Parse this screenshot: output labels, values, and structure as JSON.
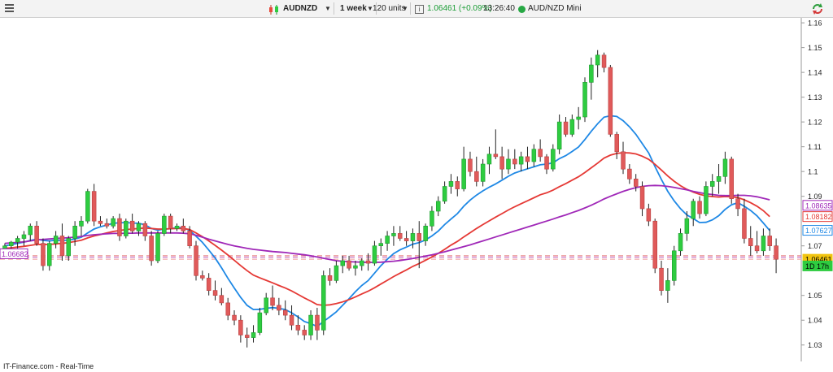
{
  "toolbar": {
    "symbol": "AUDNZD",
    "timeframe": "1 week",
    "units": "120 units",
    "price_change": "1.06461 (+0.09%)",
    "time": "13:26:40",
    "instrument_name": "AUD/NZD Mini",
    "icons": [
      "menu-icon",
      "candlestick-icon",
      "info-icon",
      "status-dot-icon",
      "refresh-icon"
    ],
    "colors": {
      "change": "#1a9c35",
      "status": "#27a844"
    }
  },
  "footer": {
    "source": "IT-Finance.com - Real-Time"
  },
  "chart_data": {
    "type": "candlestick",
    "instrument": "AUD/NZD",
    "timeframe": "1 week",
    "ylim": [
      1.025,
      1.162
    ],
    "yticks": [
      "1.16",
      "1.15",
      "1.14",
      "1.13",
      "1.12",
      "1.11",
      "1.1",
      "1.09",
      "1.07",
      "1.05",
      "1.04",
      "1.03"
    ],
    "ytick_values": [
      1.16,
      1.15,
      1.14,
      1.13,
      1.12,
      1.11,
      1.1,
      1.09,
      1.07,
      1.05,
      1.04,
      1.03
    ],
    "grid": false,
    "candles": [
      [
        1.068,
        1.071,
        1.066,
        1.07
      ],
      [
        1.07,
        1.072,
        1.069,
        1.0715
      ],
      [
        1.0715,
        1.074,
        1.069,
        1.073
      ],
      [
        1.073,
        1.076,
        1.07,
        1.0745
      ],
      [
        1.0745,
        1.079,
        1.072,
        1.078
      ],
      [
        1.078,
        1.08,
        1.07,
        1.071
      ],
      [
        1.071,
        1.073,
        1.06,
        1.062
      ],
      [
        1.062,
        1.072,
        1.06,
        1.071
      ],
      [
        1.071,
        1.076,
        1.069,
        1.074
      ],
      [
        1.074,
        1.079,
        1.064,
        1.066
      ],
      [
        1.066,
        1.074,
        1.064,
        1.073
      ],
      [
        1.073,
        1.08,
        1.07,
        1.078
      ],
      [
        1.078,
        1.082,
        1.074,
        1.08
      ],
      [
        1.08,
        1.093,
        1.079,
        1.092
      ],
      [
        1.092,
        1.095,
        1.078,
        1.08
      ],
      [
        1.08,
        1.082,
        1.078,
        1.079
      ],
      [
        1.079,
        1.081,
        1.077,
        1.078
      ],
      [
        1.078,
        1.082,
        1.077,
        1.081
      ],
      [
        1.081,
        1.083,
        1.072,
        1.074
      ],
      [
        1.074,
        1.081,
        1.073,
        1.08
      ],
      [
        1.08,
        1.083,
        1.075,
        1.076
      ],
      [
        1.076,
        1.08,
        1.074,
        1.079
      ],
      [
        1.079,
        1.08,
        1.072,
        1.074
      ],
      [
        1.074,
        1.076,
        1.062,
        1.064
      ],
      [
        1.064,
        1.076,
        1.063,
        1.075
      ],
      [
        1.075,
        1.083,
        1.074,
        1.082
      ],
      [
        1.082,
        1.083,
        1.075,
        1.077
      ],
      [
        1.077,
        1.079,
        1.076,
        1.078
      ],
      [
        1.078,
        1.081,
        1.075,
        1.076
      ],
      [
        1.076,
        1.078,
        1.069,
        1.07
      ],
      [
        1.07,
        1.072,
        1.056,
        1.058
      ],
      [
        1.058,
        1.06,
        1.056,
        1.057
      ],
      [
        1.057,
        1.059,
        1.05,
        1.052
      ],
      [
        1.052,
        1.056,
        1.048,
        1.05
      ],
      [
        1.05,
        1.053,
        1.046,
        1.047
      ],
      [
        1.047,
        1.049,
        1.04,
        1.042
      ],
      [
        1.042,
        1.044,
        1.038,
        1.04
      ],
      [
        1.04,
        1.042,
        1.031,
        1.034
      ],
      [
        1.034,
        1.037,
        1.029,
        1.033
      ],
      [
        1.033,
        1.038,
        1.031,
        1.035
      ],
      [
        1.035,
        1.045,
        1.034,
        1.043
      ],
      [
        1.043,
        1.051,
        1.042,
        1.049
      ],
      [
        1.049,
        1.054,
        1.044,
        1.046
      ],
      [
        1.046,
        1.049,
        1.042,
        1.044
      ],
      [
        1.044,
        1.048,
        1.04,
        1.042
      ],
      [
        1.042,
        1.046,
        1.036,
        1.038
      ],
      [
        1.038,
        1.042,
        1.034,
        1.036
      ],
      [
        1.036,
        1.038,
        1.032,
        1.034
      ],
      [
        1.034,
        1.044,
        1.032,
        1.042
      ],
      [
        1.042,
        1.045,
        1.032,
        1.036
      ],
      [
        1.036,
        1.06,
        1.034,
        1.058
      ],
      [
        1.058,
        1.061,
        1.054,
        1.056
      ],
      [
        1.056,
        1.064,
        1.055,
        1.062
      ],
      [
        1.062,
        1.066,
        1.059,
        1.064
      ],
      [
        1.064,
        1.066,
        1.06,
        1.061
      ],
      [
        1.061,
        1.064,
        1.058,
        1.062
      ],
      [
        1.062,
        1.065,
        1.06,
        1.064
      ],
      [
        1.064,
        1.067,
        1.06,
        1.063
      ],
      [
        1.063,
        1.072,
        1.062,
        1.07
      ],
      [
        1.07,
        1.073,
        1.066,
        1.071
      ],
      [
        1.071,
        1.076,
        1.068,
        1.074
      ],
      [
        1.074,
        1.078,
        1.07,
        1.075
      ],
      [
        1.075,
        1.078,
        1.072,
        1.073
      ],
      [
        1.073,
        1.076,
        1.07,
        1.072
      ],
      [
        1.072,
        1.077,
        1.069,
        1.075
      ],
      [
        1.075,
        1.08,
        1.061,
        1.072
      ],
      [
        1.072,
        1.079,
        1.07,
        1.078
      ],
      [
        1.078,
        1.086,
        1.076,
        1.084
      ],
      [
        1.084,
        1.09,
        1.082,
        1.088
      ],
      [
        1.088,
        1.096,
        1.087,
        1.094
      ],
      [
        1.094,
        1.099,
        1.091,
        1.096
      ],
      [
        1.096,
        1.098,
        1.09,
        1.093
      ],
      [
        1.093,
        1.11,
        1.092,
        1.105
      ],
      [
        1.105,
        1.108,
        1.098,
        1.1
      ],
      [
        1.1,
        1.106,
        1.094,
        1.096
      ],
      [
        1.096,
        1.105,
        1.094,
        1.103
      ],
      [
        1.103,
        1.11,
        1.099,
        1.107
      ],
      [
        1.107,
        1.117,
        1.105,
        1.106
      ],
      [
        1.106,
        1.11,
        1.097,
        1.101
      ],
      [
        1.101,
        1.109,
        1.099,
        1.105
      ],
      [
        1.105,
        1.109,
        1.101,
        1.103
      ],
      [
        1.103,
        1.108,
        1.1,
        1.106
      ],
      [
        1.106,
        1.11,
        1.101,
        1.104
      ],
      [
        1.104,
        1.111,
        1.102,
        1.109
      ],
      [
        1.109,
        1.113,
        1.104,
        1.106
      ],
      [
        1.106,
        1.107,
        1.099,
        1.101
      ],
      [
        1.101,
        1.111,
        1.1,
        1.109
      ],
      [
        1.109,
        1.123,
        1.107,
        1.12
      ],
      [
        1.12,
        1.122,
        1.114,
        1.115
      ],
      [
        1.115,
        1.123,
        1.114,
        1.121
      ],
      [
        1.121,
        1.126,
        1.117,
        1.122
      ],
      [
        1.122,
        1.138,
        1.12,
        1.136
      ],
      [
        1.136,
        1.146,
        1.129,
        1.143
      ],
      [
        1.143,
        1.149,
        1.138,
        1.147
      ],
      [
        1.147,
        1.148,
        1.14,
        1.142
      ],
      [
        1.142,
        1.143,
        1.114,
        1.115
      ],
      [
        1.115,
        1.116,
        1.105,
        1.108
      ],
      [
        1.108,
        1.112,
        1.099,
        1.101
      ],
      [
        1.101,
        1.103,
        1.095,
        1.097
      ],
      [
        1.097,
        1.099,
        1.092,
        1.094
      ],
      [
        1.094,
        1.096,
        1.082,
        1.085
      ],
      [
        1.085,
        1.087,
        1.078,
        1.08
      ],
      [
        1.08,
        1.081,
        1.059,
        1.061
      ],
      [
        1.061,
        1.064,
        1.05,
        1.052
      ],
      [
        1.052,
        1.061,
        1.047,
        1.056
      ],
      [
        1.056,
        1.07,
        1.054,
        1.068
      ],
      [
        1.068,
        1.077,
        1.066,
        1.075
      ],
      [
        1.075,
        1.084,
        1.072,
        1.081
      ],
      [
        1.081,
        1.089,
        1.078,
        1.088
      ],
      [
        1.088,
        1.09,
        1.081,
        1.083
      ],
      [
        1.083,
        1.096,
        1.082,
        1.094
      ],
      [
        1.094,
        1.099,
        1.09,
        1.096
      ],
      [
        1.096,
        1.103,
        1.091,
        1.098
      ],
      [
        1.098,
        1.108,
        1.095,
        1.105
      ],
      [
        1.105,
        1.106,
        1.087,
        1.089
      ],
      [
        1.089,
        1.091,
        1.082,
        1.085
      ],
      [
        1.085,
        1.089,
        1.071,
        1.073
      ],
      [
        1.073,
        1.078,
        1.066,
        1.07
      ],
      [
        1.07,
        1.076,
        1.067,
        1.068
      ],
      [
        1.068,
        1.077,
        1.066,
        1.074
      ],
      [
        1.074,
        1.077,
        1.068,
        1.07
      ],
      [
        1.07,
        1.073,
        1.059,
        1.0646
      ]
    ],
    "series": [
      {
        "name": "MA blue",
        "color": "#1e88e5",
        "values": [
          1.07,
          1.0705,
          1.071,
          1.0715,
          1.0722,
          1.0727,
          1.0722,
          1.072,
          1.0723,
          1.0722,
          1.0723,
          1.0728,
          1.0735,
          1.0752,
          1.0768,
          1.0777,
          1.0784,
          1.0791,
          1.0793,
          1.0794,
          1.0792,
          1.0791,
          1.0785,
          1.077,
          1.0763,
          1.0768,
          1.0769,
          1.0774,
          1.0773,
          1.0762,
          1.0739,
          1.0714,
          1.0683,
          1.0651,
          1.0612,
          1.0569,
          1.053,
          1.0492,
          1.046,
          1.0443,
          1.0444,
          1.0448,
          1.0451,
          1.0448,
          1.0443,
          1.043,
          1.0413,
          1.0395,
          1.0386,
          1.0375,
          1.0395,
          1.0414,
          1.0434,
          1.046,
          1.0487,
          1.0515,
          1.054,
          1.056,
          1.059,
          1.062,
          1.0646,
          1.0669,
          1.0684,
          1.0695,
          1.0707,
          1.0713,
          1.0724,
          1.074,
          1.076,
          1.0786,
          1.0808,
          1.083,
          1.086,
          1.0885,
          1.0905,
          1.0922,
          1.0937,
          1.095,
          1.0965,
          1.0981,
          1.0994,
          1.1003,
          1.1011,
          1.1019,
          1.1027,
          1.103,
          1.1035,
          1.1052,
          1.1064,
          1.1081,
          1.1099,
          1.1129,
          1.1162,
          1.1193,
          1.1219,
          1.1225,
          1.1222,
          1.1205,
          1.118,
          1.115,
          1.1113,
          1.1075,
          1.102,
          1.0968,
          1.092,
          1.0882,
          1.085,
          1.0825,
          1.081,
          1.0794,
          1.0795,
          1.0805,
          1.0822,
          1.0847,
          1.0866,
          1.0874,
          1.086,
          1.0843,
          1.0821,
          1.0792,
          1.0762
        ]
      },
      {
        "name": "MA red",
        "color": "#e53935",
        "values": [
          1.069,
          1.0692,
          1.0695,
          1.0698,
          1.0702,
          1.0706,
          1.0705,
          1.0706,
          1.0708,
          1.071,
          1.0713,
          1.0718,
          1.0723,
          1.0732,
          1.074,
          1.0746,
          1.0752,
          1.0758,
          1.0762,
          1.0766,
          1.0768,
          1.077,
          1.0772,
          1.077,
          1.0768,
          1.0768,
          1.0769,
          1.077,
          1.077,
          1.0766,
          1.0752,
          1.0737,
          1.072,
          1.0702,
          1.0683,
          1.0663,
          1.0642,
          1.062,
          1.06,
          1.0582,
          1.0571,
          1.0561,
          1.0551,
          1.054,
          1.053,
          1.0518,
          1.0504,
          1.049,
          1.0477,
          1.0463,
          1.046,
          1.0462,
          1.0467,
          1.0474,
          1.0483,
          1.0494,
          1.0506,
          1.0517,
          1.0531,
          1.0546,
          1.0561,
          1.0576,
          1.059,
          1.0603,
          1.0617,
          1.0629,
          1.0642,
          1.0655,
          1.067,
          1.0686,
          1.0703,
          1.0718,
          1.0736,
          1.0753,
          1.077,
          1.0786,
          1.0801,
          1.0816,
          1.083,
          1.0845,
          1.0858,
          1.087,
          1.0882,
          1.0894,
          1.0906,
          1.0914,
          1.0925,
          1.0939,
          1.0951,
          1.0965,
          1.0979,
          1.0996,
          1.1015,
          1.1034,
          1.1054,
          1.1066,
          1.1073,
          1.1076,
          1.1075,
          1.1071,
          1.1062,
          1.1049,
          1.1029,
          1.1006,
          1.0982,
          1.0961,
          1.0943,
          1.0928,
          1.0917,
          1.0908,
          1.0902,
          1.0899,
          1.0897,
          1.0899,
          1.0898,
          1.0895,
          1.0886,
          1.0874,
          1.086,
          1.0842,
          1.0818
        ]
      },
      {
        "name": "MA purple",
        "color": "#a028b8",
        "values": [
          1.071,
          1.0712,
          1.0714,
          1.0716,
          1.072,
          1.0724,
          1.0726,
          1.0728,
          1.073,
          1.0731,
          1.0733,
          1.0735,
          1.0738,
          1.0742,
          1.0745,
          1.0747,
          1.0749,
          1.075,
          1.075,
          1.0751,
          1.0751,
          1.0752,
          1.0752,
          1.0752,
          1.0752,
          1.0752,
          1.0752,
          1.0752,
          1.0751,
          1.0749,
          1.0743,
          1.0735,
          1.0727,
          1.072,
          1.0713,
          1.0706,
          1.07,
          1.0695,
          1.069,
          1.0686,
          1.0683,
          1.068,
          1.0677,
          1.0675,
          1.0673,
          1.067,
          1.0667,
          1.0664,
          1.066,
          1.0655,
          1.065,
          1.0645,
          1.064,
          1.0638,
          1.0636,
          1.0635,
          1.0634,
          1.0633,
          1.0633,
          1.0634,
          1.0636,
          1.0638,
          1.0641,
          1.0645,
          1.0649,
          1.0654,
          1.0659,
          1.0664,
          1.067,
          1.0676,
          1.0683,
          1.069,
          1.0697,
          1.0704,
          1.0712,
          1.072,
          1.0728,
          1.0736,
          1.0744,
          1.0752,
          1.076,
          1.0768,
          1.0776,
          1.0784,
          1.0792,
          1.08,
          1.0808,
          1.0817,
          1.0825,
          1.0834,
          1.0843,
          1.0853,
          1.0864,
          1.0876,
          1.0889,
          1.09,
          1.091,
          1.092,
          1.0928,
          1.0935,
          1.094,
          1.0943,
          1.0944,
          1.0943,
          1.094,
          1.0936,
          1.0931,
          1.0926,
          1.092,
          1.0915,
          1.091,
          1.0907,
          1.0904,
          1.0903,
          1.0903,
          1.0904,
          1.0904,
          1.0902,
          1.0898,
          1.0892,
          1.0886
        ]
      }
    ],
    "hlines": [
      {
        "value": 1.066,
        "color": "#e57373"
      },
      {
        "value": 1.0654,
        "color": "#c060c0"
      },
      {
        "value": 1.0646,
        "color": "#ef9a9a"
      }
    ],
    "price_tags": [
      {
        "text": "1.08635",
        "value": 1.08635,
        "color": "#a028b8"
      },
      {
        "text": "1.08182",
        "value": 1.08182,
        "color": "#e53935"
      },
      {
        "text": "1.07627",
        "value": 1.07627,
        "color": "#1e88e5"
      },
      {
        "text": "1.06461",
        "value": 1.06461,
        "color": "#f1c40f"
      },
      {
        "text": "1D 17h",
        "value": 1.0619,
        "color": "#2ecc40"
      }
    ],
    "left_tag": {
      "text": "1.06682",
      "value": 1.06682,
      "color": "#a028b8"
    },
    "candle_colors": {
      "up": "#2ecc40",
      "down": "#e05a5a",
      "wick": "#222222"
    }
  }
}
